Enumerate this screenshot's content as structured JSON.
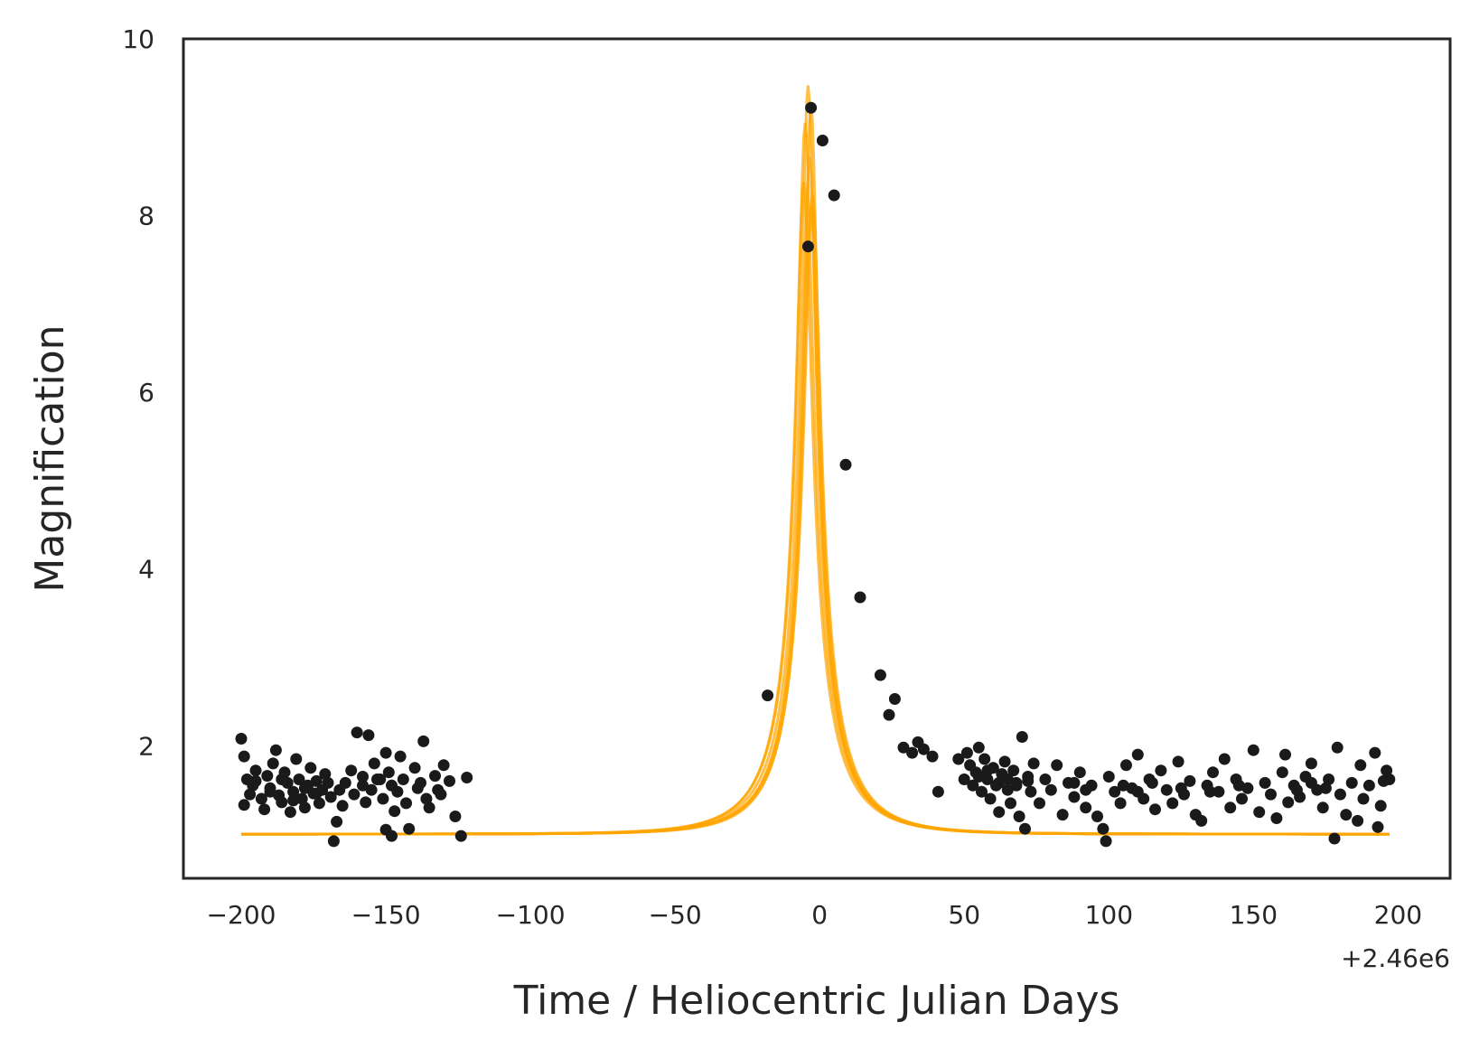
{
  "chart_data": {
    "type": "scatter",
    "title": "",
    "xlabel": "Time / Heliocentric Julian Days",
    "ylabel": "Magnification",
    "x_offset_label": "+2.46e6",
    "xlim": [
      -220,
      218
    ],
    "ylim": [
      0.5,
      10
    ],
    "xticks": [
      -200,
      -150,
      -100,
      -50,
      0,
      50,
      100,
      150,
      200
    ],
    "xtick_labels": [
      "−200",
      "−150",
      "−100",
      "−50",
      "0",
      "50",
      "100",
      "150",
      "200"
    ],
    "yticks": [
      2,
      4,
      6,
      8,
      10
    ],
    "ytick_labels": [
      "2",
      "4",
      "6",
      "8",
      "10"
    ],
    "grid": false,
    "legend": "none",
    "colors": {
      "model": "#FFA500",
      "data": "#1a1a1a",
      "axes": "#262626"
    },
    "series": [
      {
        "kind": "model-curves",
        "style": "line",
        "color": "#FFA500",
        "x_range": [
          -200,
          197
        ],
        "curves": [
          {
            "t0": -4.0,
            "u0": 0.106,
            "tE": 23.0
          },
          {
            "t0": -3.0,
            "u0": 0.1085,
            "tE": 22.5
          },
          {
            "t0": -5.0,
            "u0": 0.111,
            "tE": 23.5
          },
          {
            "t0": -3.5,
            "u0": 0.116,
            "tE": 22.0
          },
          {
            "t0": -2.5,
            "u0": 0.122,
            "tE": 22.5
          },
          {
            "t0": -5.5,
            "u0": 0.12,
            "tE": 23.0
          },
          {
            "t0": -3.0,
            "u0": 0.124,
            "tE": 21.5
          }
        ]
      },
      {
        "kind": "observations",
        "style": "scatter",
        "color": "#1a1a1a",
        "points": [
          [
            -200,
            2.08
          ],
          [
            -199,
            1.88
          ],
          [
            -198,
            1.62
          ],
          [
            -197,
            1.45
          ],
          [
            -199,
            1.33
          ],
          [
            -196,
            1.55
          ],
          [
            -195,
            1.72
          ],
          [
            -193,
            1.4
          ],
          [
            -192,
            1.28
          ],
          [
            -191,
            1.66
          ],
          [
            -190,
            1.52
          ],
          [
            -189,
            1.8
          ],
          [
            -188,
            1.95
          ],
          [
            -187,
            1.44
          ],
          [
            -186,
            1.36
          ],
          [
            -185,
            1.7
          ],
          [
            -184,
            1.58
          ],
          [
            -183,
            1.25
          ],
          [
            -182,
            1.48
          ],
          [
            -181,
            1.85
          ],
          [
            -180,
            1.62
          ],
          [
            -179,
            1.4
          ],
          [
            -178,
            1.3
          ],
          [
            -177,
            1.55
          ],
          [
            -176,
            1.75
          ],
          [
            -175,
            1.46
          ],
          [
            -174,
            1.6
          ],
          [
            -173,
            1.35
          ],
          [
            -172,
            1.5
          ],
          [
            -171,
            1.68
          ],
          [
            -169,
            1.42
          ],
          [
            -167,
            1.14
          ],
          [
            -165,
            1.32
          ],
          [
            -164,
            1.58
          ],
          [
            -162,
            1.72
          ],
          [
            -161,
            1.45
          ],
          [
            -160,
            2.15
          ],
          [
            -158,
            1.65
          ],
          [
            -157,
            1.36
          ],
          [
            -156,
            2.12
          ],
          [
            -155,
            1.5
          ],
          [
            -154,
            1.8
          ],
          [
            -152,
            1.62
          ],
          [
            -151,
            1.4
          ],
          [
            -150,
            1.92
          ],
          [
            -149,
            1.7
          ],
          [
            -148,
            1.55
          ],
          [
            -147,
            1.26
          ],
          [
            -146,
            1.48
          ],
          [
            -145,
            1.88
          ],
          [
            -144,
            1.62
          ],
          [
            -143,
            1.35
          ],
          [
            -142,
            1.06
          ],
          [
            -140,
            1.75
          ],
          [
            -139,
            1.52
          ],
          [
            -138,
            1.58
          ],
          [
            -137,
            2.05
          ],
          [
            -136,
            1.4
          ],
          [
            -135,
            1.3
          ],
          [
            -133,
            1.66
          ],
          [
            -132,
            1.5
          ],
          [
            -131,
            1.45
          ],
          [
            -130,
            1.78
          ],
          [
            -128,
            1.6
          ],
          [
            -126,
            1.2
          ],
          [
            -124,
            0.98
          ],
          [
            -122,
            1.64
          ],
          [
            -168,
            0.92
          ],
          [
            -150,
            1.05
          ],
          [
            -148,
            0.98
          ],
          [
            -195,
            1.6
          ],
          [
            -190,
            1.48
          ],
          [
            -186,
            1.62
          ],
          [
            -182,
            1.38
          ],
          [
            -178,
            1.52
          ],
          [
            -174,
            1.46
          ],
          [
            -170,
            1.58
          ],
          [
            -166,
            1.5
          ],
          [
            -158,
            1.55
          ],
          [
            -153,
            1.62
          ],
          [
            -18,
            2.57
          ],
          [
            -4,
            7.65
          ],
          [
            -3,
            9.22
          ],
          [
            1,
            8.85
          ],
          [
            5,
            8.23
          ],
          [
            9,
            5.18
          ],
          [
            14,
            3.68
          ],
          [
            21,
            2.8
          ],
          [
            24,
            2.35
          ],
          [
            26,
            2.53
          ],
          [
            29,
            1.98
          ],
          [
            32,
            1.92
          ],
          [
            34,
            2.04
          ],
          [
            36,
            1.96
          ],
          [
            39,
            1.88
          ],
          [
            41,
            1.48
          ],
          [
            48,
            1.85
          ],
          [
            50,
            1.62
          ],
          [
            51,
            1.92
          ],
          [
            52,
            1.78
          ],
          [
            53,
            1.55
          ],
          [
            54,
            1.7
          ],
          [
            55,
            1.98
          ],
          [
            56,
            1.48
          ],
          [
            57,
            1.85
          ],
          [
            58,
            1.62
          ],
          [
            59,
            1.4
          ],
          [
            60,
            1.75
          ],
          [
            61,
            1.55
          ],
          [
            62,
            1.25
          ],
          [
            63,
            1.68
          ],
          [
            64,
            1.82
          ],
          [
            65,
            1.5
          ],
          [
            66,
            1.35
          ],
          [
            67,
            1.72
          ],
          [
            68,
            1.58
          ],
          [
            69,
            1.2
          ],
          [
            70,
            2.1
          ],
          [
            71,
            1.06
          ],
          [
            72,
            1.65
          ],
          [
            73,
            1.48
          ],
          [
            74,
            1.8
          ],
          [
            76,
            1.35
          ],
          [
            78,
            1.62
          ],
          [
            80,
            1.5
          ],
          [
            82,
            1.78
          ],
          [
            84,
            1.22
          ],
          [
            86,
            1.58
          ],
          [
            88,
            1.42
          ],
          [
            90,
            1.7
          ],
          [
            92,
            1.3
          ],
          [
            94,
            1.55
          ],
          [
            96,
            1.2
          ],
          [
            98,
            1.06
          ],
          [
            99,
            0.92
          ],
          [
            100,
            1.65
          ],
          [
            102,
            1.48
          ],
          [
            104,
            1.35
          ],
          [
            106,
            1.78
          ],
          [
            108,
            1.52
          ],
          [
            110,
            1.9
          ],
          [
            112,
            1.4
          ],
          [
            114,
            1.62
          ],
          [
            116,
            1.28
          ],
          [
            118,
            1.72
          ],
          [
            120,
            1.5
          ],
          [
            122,
            1.35
          ],
          [
            124,
            1.82
          ],
          [
            126,
            1.45
          ],
          [
            128,
            1.6
          ],
          [
            130,
            1.22
          ],
          [
            132,
            1.15
          ],
          [
            134,
            1.55
          ],
          [
            136,
            1.7
          ],
          [
            138,
            1.48
          ],
          [
            140,
            1.85
          ],
          [
            142,
            1.3
          ],
          [
            144,
            1.62
          ],
          [
            146,
            1.4
          ],
          [
            148,
            1.52
          ],
          [
            150,
            1.95
          ],
          [
            152,
            1.25
          ],
          [
            154,
            1.58
          ],
          [
            156,
            1.45
          ],
          [
            158,
            1.18
          ],
          [
            160,
            1.7
          ],
          [
            161,
            1.9
          ],
          [
            162,
            1.36
          ],
          [
            164,
            1.55
          ],
          [
            166,
            1.42
          ],
          [
            168,
            1.65
          ],
          [
            170,
            1.8
          ],
          [
            172,
            1.5
          ],
          [
            174,
            1.3
          ],
          [
            176,
            1.62
          ],
          [
            178,
            0.95
          ],
          [
            179,
            1.98
          ],
          [
            180,
            1.45
          ],
          [
            182,
            1.22
          ],
          [
            184,
            1.58
          ],
          [
            186,
            1.15
          ],
          [
            187,
            1.78
          ],
          [
            188,
            1.4
          ],
          [
            190,
            1.55
          ],
          [
            192,
            1.92
          ],
          [
            193,
            1.08
          ],
          [
            194,
            1.32
          ],
          [
            195,
            1.6
          ],
          [
            196,
            1.72
          ],
          [
            197,
            1.62
          ],
          [
            55,
            1.65
          ],
          [
            58,
            1.72
          ],
          [
            62,
            1.58
          ],
          [
            65,
            1.62
          ],
          [
            68,
            1.55
          ],
          [
            72,
            1.6
          ],
          [
            88,
            1.58
          ],
          [
            92,
            1.5
          ],
          [
            105,
            1.55
          ],
          [
            110,
            1.48
          ],
          [
            115,
            1.58
          ],
          [
            125,
            1.52
          ],
          [
            135,
            1.48
          ],
          [
            145,
            1.55
          ],
          [
            165,
            1.5
          ],
          [
            170,
            1.58
          ],
          [
            175,
            1.52
          ]
        ]
      }
    ]
  }
}
